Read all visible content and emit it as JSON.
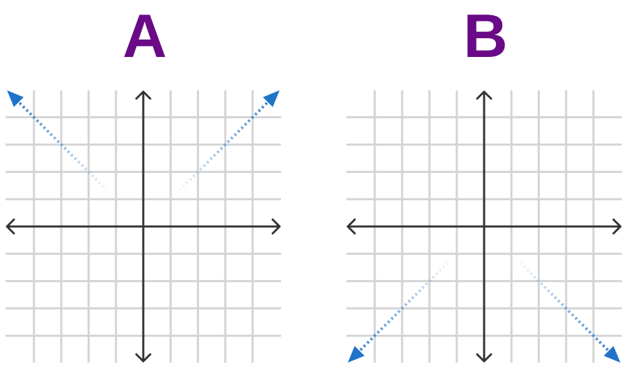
{
  "colors": {
    "label": "#6a0a87",
    "grid": "#d4d4d4",
    "axis": "#333333",
    "arrow": "#1f74c9"
  },
  "panels": [
    {
      "label": "A",
      "end_behavior": {
        "left": "up",
        "right": "up"
      }
    },
    {
      "label": "B",
      "end_behavior": {
        "left": "down",
        "right": "down"
      }
    }
  ]
}
